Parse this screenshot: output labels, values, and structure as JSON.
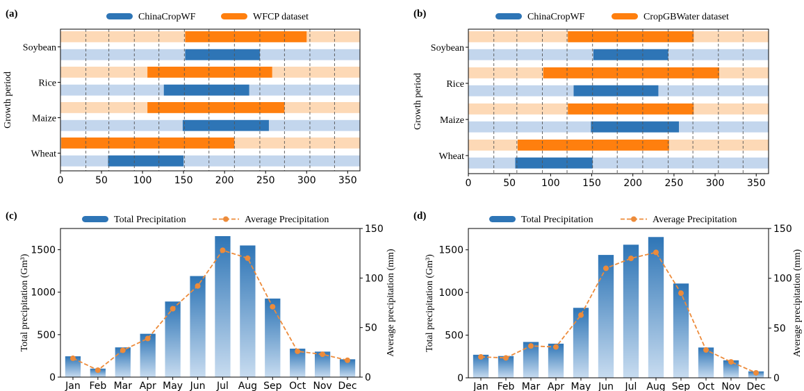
{
  "colors": {
    "blue": "#2e75b6",
    "orange": "#ff7f0e",
    "blue_light": "#c3d6ed",
    "orange_light": "#fdd9b6",
    "grid": "#555555",
    "marker": "#ed8b3a"
  },
  "chart_data": [
    {
      "panel": "(a)",
      "type": "bar",
      "orientation": "horizontal",
      "legend": [
        "ChinaCropWF",
        "WFCP dataset"
      ],
      "ylabel": "Growth period",
      "categories": [
        "Soybean",
        "Rice",
        "Maize",
        "Wheat"
      ],
      "xlim": [
        0,
        365
      ],
      "xticks": [
        "0",
        "50",
        "100",
        "150",
        "200",
        "250",
        "300",
        "350"
      ],
      "grid_x": [
        31,
        59,
        90,
        120,
        151,
        181,
        212,
        243,
        273,
        304,
        334
      ],
      "series": [
        {
          "name": "WFCP dataset",
          "ranges": [
            [
              152,
              300
            ],
            [
              106,
              258
            ],
            [
              106,
              273
            ],
            [
              1,
              212
            ]
          ]
        },
        {
          "name": "ChinaCropWF",
          "ranges": [
            [
              152,
              243
            ],
            [
              126,
              230
            ],
            [
              149,
              254
            ],
            [
              58,
              150
            ]
          ]
        }
      ]
    },
    {
      "panel": "(b)",
      "type": "bar",
      "orientation": "horizontal",
      "legend": [
        "ChinaCropWF",
        "CropGBWater dataset"
      ],
      "ylabel": "Growth period",
      "categories": [
        "Soybean",
        "Rice",
        "Maize",
        "Wheat"
      ],
      "xlim": [
        0,
        365
      ],
      "xticks": [
        "0",
        "50",
        "100",
        "150",
        "200",
        "250",
        "300",
        "350"
      ],
      "grid_x": [
        31,
        59,
        90,
        120,
        151,
        181,
        212,
        243,
        273,
        304,
        334
      ],
      "series": [
        {
          "name": "CropGBWater dataset",
          "ranges": [
            [
              121,
              274
            ],
            [
              91,
              305
            ],
            [
              121,
              274
            ],
            [
              60,
              244
            ]
          ]
        },
        {
          "name": "ChinaCropWF",
          "ranges": [
            [
              152,
              243
            ],
            [
              128,
              231
            ],
            [
              149,
              256
            ],
            [
              57,
              151
            ]
          ]
        }
      ]
    },
    {
      "panel": "(c)",
      "type": "bar",
      "legend": [
        "Total Precipitation",
        "Average Precipitation"
      ],
      "ylabel": "Total precipitation (Gm³)",
      "y2label": "Average precipitation (mm)",
      "categories": [
        "Jan",
        "Feb",
        "Mar",
        "Apr",
        "May",
        "Jun",
        "Jul",
        "Aug",
        "Sep",
        "Oct",
        "Nov",
        "Dec"
      ],
      "ylim": [
        0,
        1750
      ],
      "yticks": [
        "0",
        "500",
        "1000",
        "1500"
      ],
      "y2lim": [
        0,
        150
      ],
      "y2ticks": [
        "0",
        "50",
        "100",
        "150"
      ],
      "series": [
        {
          "name": "Total Precipitation",
          "values": [
            245,
            100,
            350,
            510,
            890,
            1190,
            1660,
            1550,
            925,
            335,
            300,
            210
          ]
        },
        {
          "name": "Average Precipitation",
          "values": [
            19,
            7,
            27,
            39,
            69,
            92,
            128,
            120,
            71,
            26,
            23,
            17
          ]
        }
      ]
    },
    {
      "panel": "(d)",
      "type": "bar",
      "legend": [
        "Total Precipitation",
        "Average Precipitation"
      ],
      "ylabel": "Total precipitation (Gm³)",
      "y2label": "Average precipitation (mm)",
      "categories": [
        "Jan",
        "Feb",
        "Mar",
        "Apr",
        "May",
        "Jun",
        "Jul",
        "Aug",
        "Sep",
        "Oct",
        "Nov",
        "Dec"
      ],
      "ylim": [
        0,
        1750
      ],
      "yticks": [
        "0",
        "500",
        "1000",
        "1500"
      ],
      "y2lim": [
        0,
        150
      ],
      "y2ticks": [
        "0",
        "50",
        "100",
        "150"
      ],
      "series": [
        {
          "name": "Total Precipitation",
          "values": [
            270,
            255,
            420,
            400,
            820,
            1440,
            1560,
            1650,
            1105,
            355,
            205,
            75
          ]
        },
        {
          "name": "Average Precipitation",
          "values": [
            21,
            20,
            32,
            31,
            63,
            110,
            120,
            126,
            85,
            28,
            16,
            5
          ]
        }
      ]
    }
  ]
}
